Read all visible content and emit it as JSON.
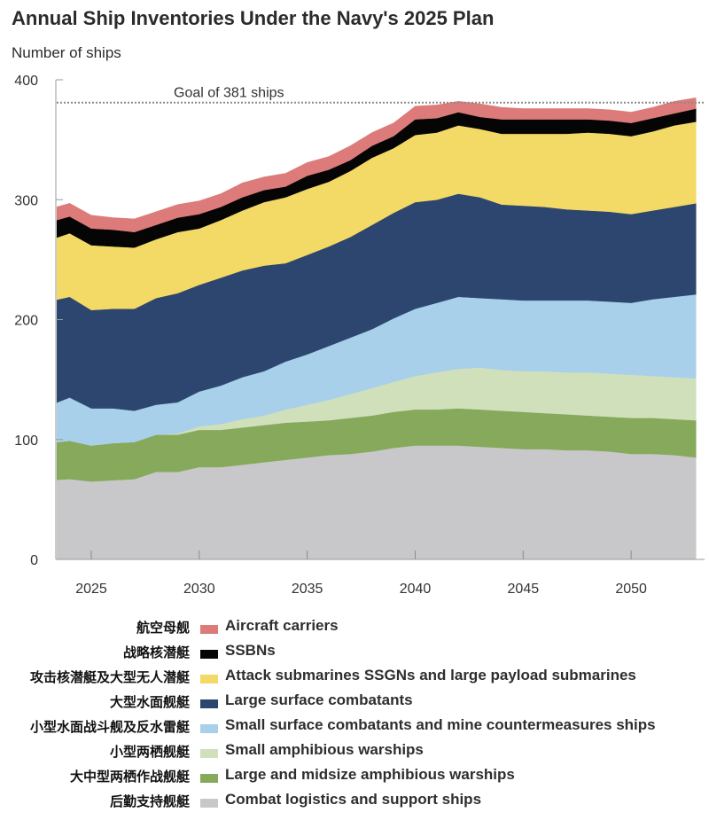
{
  "chart_data": {
    "type": "area",
    "stacked": true,
    "title": "Annual Ship Inventories Under the Navy's 2025 Plan",
    "ylabel": "Number of ships",
    "xlabel": "",
    "ylim": [
      0,
      400
    ],
    "xlim": [
      2023.4,
      2053.4
    ],
    "yticks": [
      0,
      100,
      200,
      300,
      400
    ],
    "xticks": [
      2025,
      2030,
      2035,
      2040,
      2045,
      2050
    ],
    "grid": false,
    "legend_position": "bottom",
    "reference_line": {
      "value": 381,
      "label": "Goal of 381 ships",
      "style": "dotted"
    },
    "x": [
      2023,
      2024,
      2025,
      2026,
      2027,
      2028,
      2029,
      2030,
      2031,
      2032,
      2033,
      2034,
      2035,
      2036,
      2037,
      2038,
      2039,
      2040,
      2041,
      2042,
      2043,
      2044,
      2045,
      2046,
      2047,
      2048,
      2049,
      2050,
      2051,
      2052,
      2053
    ],
    "series": [
      {
        "name": "Combat logistics and support ships",
        "name_cn": "后勤支持舰艇",
        "color": "#c8c8ca",
        "values": [
          66,
          67,
          65,
          66,
          67,
          73,
          73,
          77,
          77,
          79,
          81,
          83,
          85,
          87,
          88,
          90,
          93,
          95,
          95,
          95,
          94,
          93,
          92,
          92,
          91,
          91,
          90,
          88,
          88,
          87,
          85
        ]
      },
      {
        "name": "Large and midsize amphibious warships",
        "name_cn": "大中型两栖作战舰艇",
        "color": "#86a95c",
        "values": [
          31,
          32,
          30,
          31,
          31,
          31,
          31,
          31,
          31,
          31,
          31,
          31,
          30,
          29,
          30,
          30,
          30,
          30,
          30,
          31,
          31,
          31,
          31,
          30,
          30,
          29,
          29,
          30,
          30,
          30,
          31
        ]
      },
      {
        "name": "Small amphibious warships",
        "name_cn": "小型两栖舰艇",
        "color": "#cfe0bb",
        "values": [
          0,
          0,
          0,
          0,
          0,
          0,
          1,
          3,
          5,
          7,
          8,
          11,
          14,
          17,
          20,
          23,
          25,
          28,
          31,
          33,
          35,
          34,
          34,
          35,
          35,
          36,
          36,
          36,
          35,
          35,
          35
        ]
      },
      {
        "name": "Small surface combatants and mine countermeasures ships",
        "name_cn": "小型水面战斗舰及反水雷艇",
        "color": "#a8d0ea",
        "values": [
          31,
          36,
          31,
          29,
          26,
          25,
          26,
          29,
          32,
          35,
          37,
          40,
          42,
          45,
          47,
          49,
          53,
          56,
          58,
          60,
          58,
          59,
          59,
          59,
          60,
          60,
          60,
          60,
          64,
          67,
          70
        ]
      },
      {
        "name": "Large surface combatants",
        "name_cn": "大型水面舰艇",
        "color": "#2d466f",
        "values": [
          87,
          84,
          82,
          83,
          85,
          89,
          91,
          89,
          90,
          89,
          88,
          82,
          83,
          83,
          84,
          87,
          88,
          89,
          86,
          86,
          84,
          79,
          79,
          78,
          76,
          75,
          75,
          74,
          74,
          75,
          76
        ]
      },
      {
        "name": "Attack submarines SSGNs and large payload submarines",
        "name_cn": "攻击核潜艇及大型无人潜艇",
        "color": "#f3d965",
        "values": [
          51,
          53,
          54,
          52,
          51,
          49,
          51,
          47,
          48,
          50,
          53,
          55,
          55,
          54,
          55,
          56,
          54,
          56,
          56,
          57,
          57,
          59,
          60,
          61,
          63,
          65,
          65,
          65,
          66,
          68,
          68
        ]
      },
      {
        "name": "SSBNs",
        "name_cn": "战略核潜艇",
        "color": "#050505",
        "values": [
          15,
          14,
          14,
          14,
          13,
          12,
          12,
          12,
          11,
          11,
          10,
          9,
          11,
          10,
          9,
          10,
          10,
          13,
          12,
          11,
          10,
          12,
          12,
          12,
          12,
          11,
          11,
          11,
          11,
          10,
          11
        ]
      },
      {
        "name": "Aircraft carriers",
        "name_cn": "航空母舰",
        "color": "#dc7b79",
        "values": [
          11,
          11,
          11,
          10,
          11,
          11,
          11,
          11,
          11,
          12,
          11,
          11,
          11,
          11,
          12,
          11,
          11,
          11,
          11,
          9,
          11,
          10,
          9,
          9,
          9,
          9,
          9,
          9,
          9,
          10,
          9
        ]
      }
    ]
  },
  "legend": [
    {
      "cn": "航空母舰",
      "en": "Aircraft carriers",
      "color": "#dc7b79"
    },
    {
      "cn": "战略核潜艇",
      "en": "SSBNs",
      "color": "#050505"
    },
    {
      "cn": "攻击核潜艇及大型无人潜艇",
      "en": "Attack submarines SSGNs and large payload submarines",
      "color": "#f3d965"
    },
    {
      "cn": "大型水面舰艇",
      "en": "Large surface combatants",
      "color": "#2d466f"
    },
    {
      "cn": "小型水面战斗舰及反水雷艇",
      "en": "Small surface combatants and mine countermeasures ships",
      "color": "#a8d0ea"
    },
    {
      "cn": "小型两栖舰艇",
      "en": "Small amphibious warships",
      "color": "#cfe0bb"
    },
    {
      "cn": "大中型两栖作战舰艇",
      "en": "Large and midsize amphibious warships",
      "color": "#86a95c"
    },
    {
      "cn": "后勤支持舰艇",
      "en": "Combat logistics and support ships",
      "color": "#c8c8ca"
    }
  ]
}
